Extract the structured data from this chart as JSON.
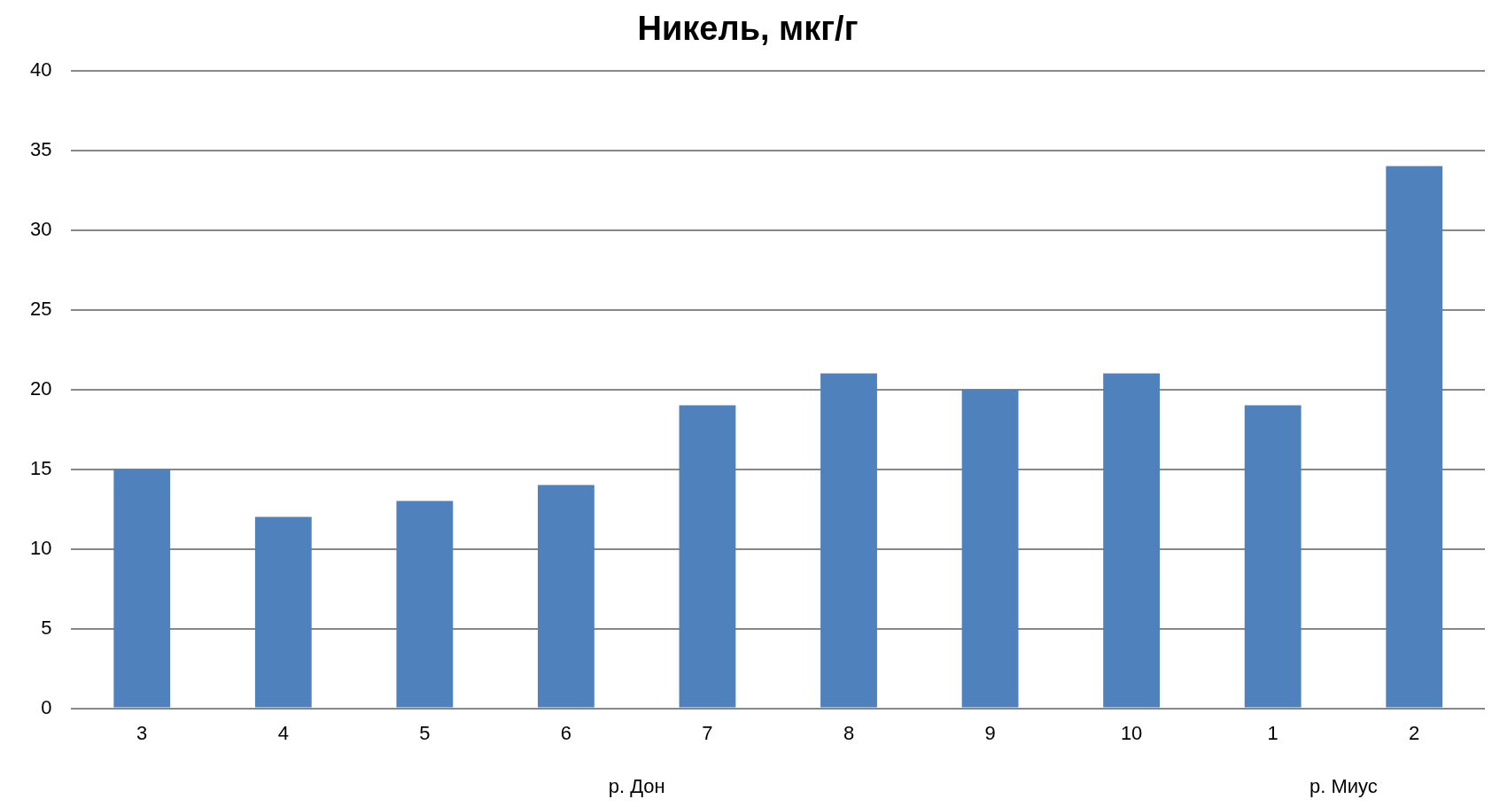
{
  "chart_data": {
    "type": "bar",
    "title": "Никель, мкг/г",
    "categories": [
      "3",
      "4",
      "5",
      "6",
      "7",
      "8",
      "9",
      "10",
      "1",
      "2"
    ],
    "values": [
      15,
      12,
      13,
      14,
      19,
      21,
      20,
      21,
      19,
      34
    ],
    "color": "#4f81bd",
    "ylim": [
      0,
      40
    ],
    "yticks": [
      0,
      5,
      10,
      15,
      20,
      25,
      30,
      35,
      40
    ],
    "grid": "y",
    "legend": false,
    "annotations": [
      "р. Дон",
      "р. Миус"
    ]
  }
}
